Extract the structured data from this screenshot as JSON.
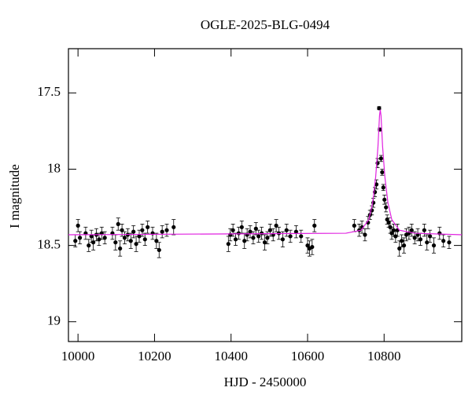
{
  "chart_data": {
    "type": "scatter",
    "title": "OGLE-2025-BLG-0494",
    "x_label": "HJD - 2450000",
    "y_label": "I magnitude",
    "xlim": [
      9975,
      11003
    ],
    "ylim": [
      17.21,
      19.13
    ],
    "y_inverted": true,
    "xticks": [
      10000,
      10200,
      10400,
      10600,
      10800
    ],
    "yticks": [
      17.5,
      18,
      18.5,
      19
    ],
    "series": [
      {
        "color": "#000000",
        "x": [
          9993,
          10000,
          10005,
          10020,
          10028,
          10035,
          10040,
          10048,
          10055,
          10062,
          10070,
          10090,
          10098,
          10105,
          10110,
          10115,
          10122,
          10130,
          10138,
          10145,
          10152,
          10160,
          10168,
          10175,
          10182,
          10195,
          10205,
          10212,
          10220,
          10232,
          10250,
          10393,
          10398,
          10405,
          10412,
          10420,
          10428,
          10435,
          10442,
          10450,
          10458,
          10465,
          10472,
          10480,
          10488,
          10495,
          10502,
          10510,
          10518,
          10525,
          10535,
          10545,
          10555,
          10570,
          10583,
          10600,
          10605,
          10612,
          10618,
          10722,
          10735,
          10742,
          10750,
          10758,
          10763,
          10768,
          10772,
          10776,
          10780,
          10783,
          10787,
          10789,
          10792,
          10795,
          10798,
          10801,
          10805,
          10808,
          10812,
          10816,
          10820,
          10825,
          10830,
          10835,
          10840,
          10846,
          10852,
          10858,
          10865,
          10872,
          10880,
          10888,
          10895,
          10905,
          10912,
          10920,
          10930,
          10945,
          10955,
          10970
        ],
        "values": [
          18.47,
          18.37,
          18.45,
          18.42,
          18.5,
          18.44,
          18.48,
          18.43,
          18.46,
          18.42,
          18.45,
          18.42,
          18.48,
          18.36,
          18.52,
          18.4,
          18.45,
          18.43,
          18.47,
          18.41,
          18.49,
          18.44,
          18.4,
          18.46,
          18.38,
          18.42,
          18.47,
          18.53,
          18.41,
          18.4,
          18.38,
          18.49,
          18.43,
          18.4,
          18.46,
          18.42,
          18.38,
          18.47,
          18.43,
          18.41,
          18.45,
          18.39,
          18.44,
          18.42,
          18.48,
          18.45,
          18.4,
          18.43,
          18.37,
          18.42,
          18.46,
          18.4,
          18.44,
          18.41,
          18.44,
          18.5,
          18.52,
          18.51,
          18.37,
          18.37,
          18.4,
          18.38,
          18.43,
          18.35,
          18.3,
          18.27,
          18.22,
          18.15,
          18.1,
          17.96,
          17.6,
          17.74,
          17.93,
          18.02,
          18.12,
          18.2,
          18.25,
          18.33,
          18.35,
          18.38,
          18.42,
          18.4,
          18.44,
          18.4,
          18.52,
          18.47,
          18.5,
          18.43,
          18.42,
          18.4,
          18.45,
          18.43,
          18.46,
          18.4,
          18.48,
          18.44,
          18.5,
          18.42,
          18.47,
          18.48
        ],
        "errors": [
          0.04,
          0.04,
          0.04,
          0.04,
          0.04,
          0.04,
          0.05,
          0.04,
          0.04,
          0.04,
          0.04,
          0.04,
          0.05,
          0.04,
          0.05,
          0.04,
          0.04,
          0.04,
          0.05,
          0.04,
          0.05,
          0.04,
          0.04,
          0.04,
          0.04,
          0.04,
          0.05,
          0.05,
          0.04,
          0.04,
          0.05,
          0.05,
          0.04,
          0.04,
          0.04,
          0.04,
          0.04,
          0.05,
          0.04,
          0.04,
          0.04,
          0.04,
          0.04,
          0.04,
          0.05,
          0.04,
          0.04,
          0.04,
          0.04,
          0.04,
          0.05,
          0.04,
          0.04,
          0.04,
          0.04,
          0.05,
          0.05,
          0.05,
          0.04,
          0.04,
          0.04,
          0.04,
          0.04,
          0.04,
          0.03,
          0.03,
          0.03,
          0.03,
          0.03,
          0.03,
          0.01,
          0.01,
          0.02,
          0.02,
          0.02,
          0.03,
          0.03,
          0.03,
          0.03,
          0.04,
          0.04,
          0.04,
          0.04,
          0.04,
          0.05,
          0.04,
          0.05,
          0.04,
          0.04,
          0.04,
          0.04,
          0.04,
          0.04,
          0.04,
          0.05,
          0.04,
          0.05,
          0.04,
          0.04,
          0.04
        ]
      },
      {
        "type": "line",
        "color": "#e020e0",
        "x": [
          9975,
          10700,
          10740,
          10760,
          10770,
          10778,
          10784,
          10788,
          10790,
          10792,
          10796,
          10802,
          10810,
          10820,
          10840,
          10880,
          11003
        ],
        "values": [
          18.43,
          18.42,
          18.4,
          18.33,
          18.22,
          18.05,
          17.85,
          17.65,
          17.61,
          17.65,
          17.85,
          18.05,
          18.22,
          18.33,
          18.4,
          18.42,
          18.43
        ]
      }
    ]
  }
}
